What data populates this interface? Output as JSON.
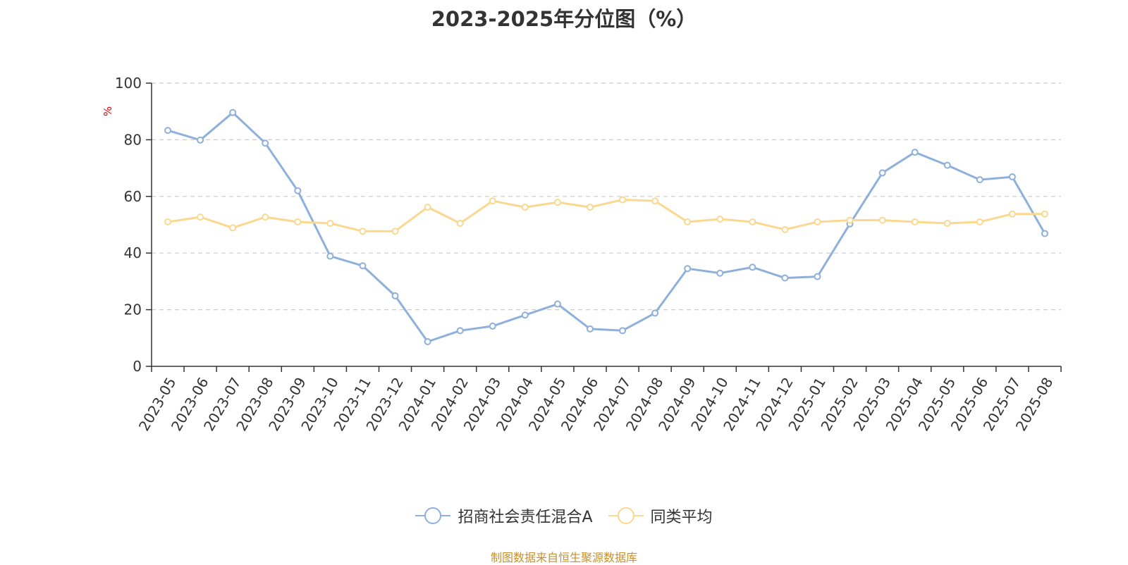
{
  "chart_data": {
    "type": "line",
    "title": "2023-2025年分位图（%）",
    "ylabel": "%",
    "ylim": [
      0,
      100
    ],
    "yticks": [
      0,
      20,
      40,
      60,
      80,
      100
    ],
    "grid": true,
    "legend_position": "bottom",
    "categories": [
      "2023-05",
      "2023-06",
      "2023-07",
      "2023-08",
      "2023-09",
      "2023-10",
      "2023-11",
      "2023-12",
      "2024-01",
      "2024-02",
      "2024-03",
      "2024-04",
      "2024-05",
      "2024-06",
      "2024-07",
      "2024-08",
      "2024-09",
      "2024-10",
      "2024-11",
      "2024-12",
      "2025-01",
      "2025-02",
      "2025-03",
      "2025-04",
      "2025-05",
      "2025-06",
      "2025-07",
      "2025-08"
    ],
    "series": [
      {
        "name": "招商社会责任混合A",
        "color": "#8eb0db",
        "values": [
          83.3,
          79.9,
          89.6,
          78.8,
          62.0,
          38.9,
          35.5,
          24.9,
          8.7,
          12.6,
          14.2,
          18.1,
          22.0,
          13.2,
          12.6,
          18.8,
          34.5,
          32.9,
          35.0,
          31.2,
          31.7,
          50.3,
          68.3,
          75.6,
          71.0,
          65.9,
          66.9,
          46.9
        ]
      },
      {
        "name": "同类平均",
        "color": "#fbd88f",
        "values": [
          51.0,
          52.7,
          48.9,
          52.7,
          51.0,
          50.5,
          47.7,
          47.7,
          56.2,
          50.5,
          58.4,
          56.2,
          57.9,
          56.2,
          58.8,
          58.4,
          51.0,
          52.0,
          51.0,
          48.3,
          51.0,
          51.6,
          51.6,
          51.0,
          50.5,
          51.0,
          53.8,
          53.8
        ]
      }
    ]
  },
  "source_note": "制图数据来自恒生聚源数据库"
}
